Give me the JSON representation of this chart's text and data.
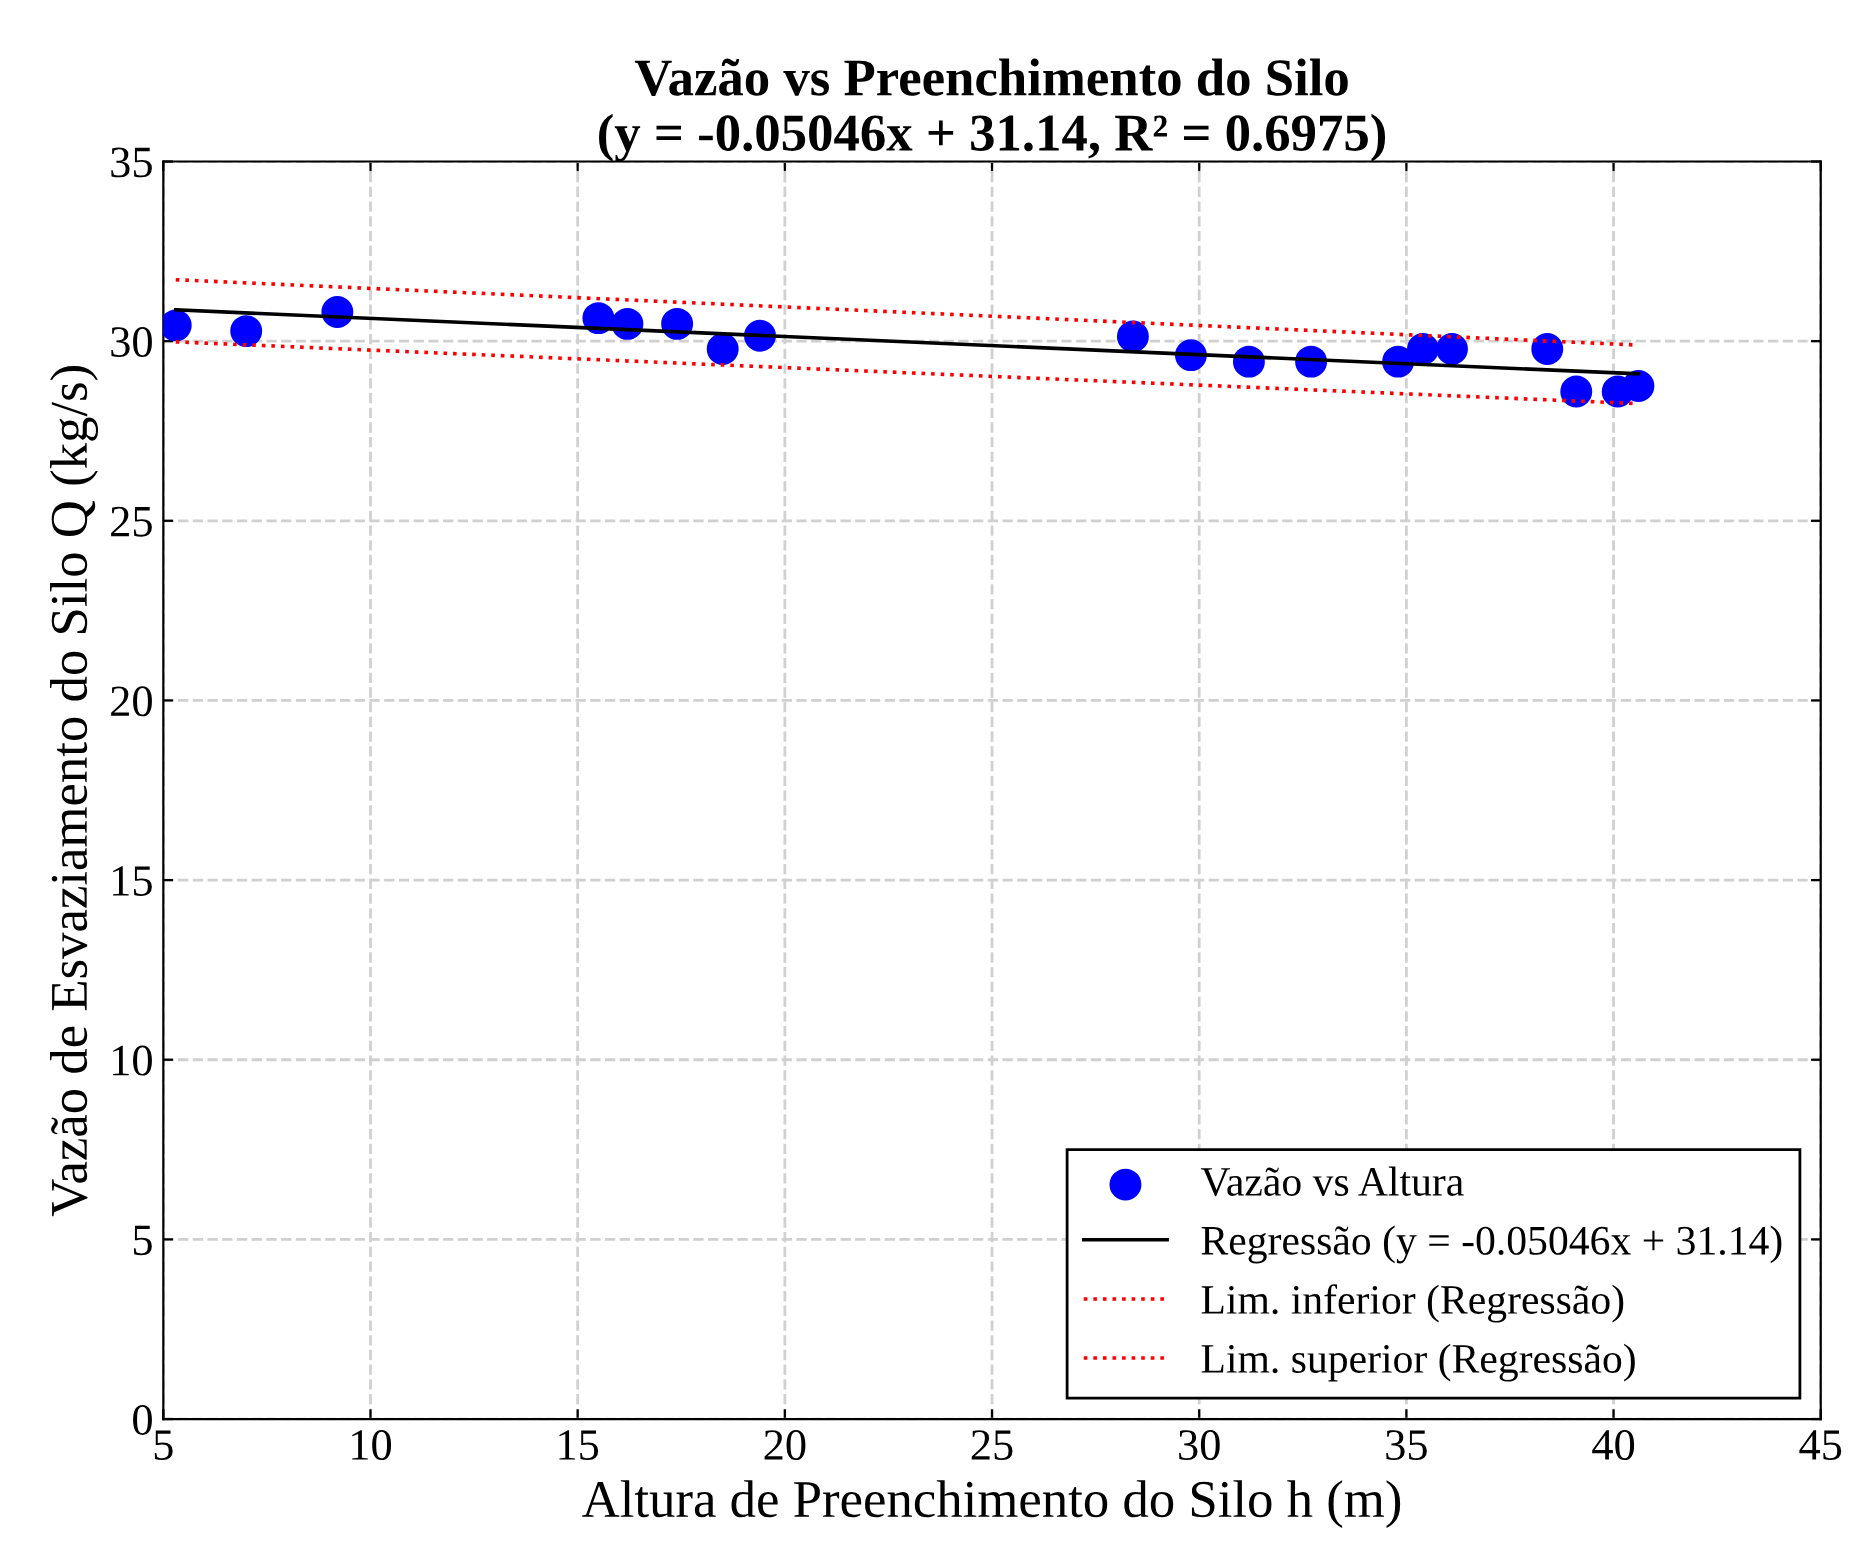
{
  "chart_data": {
    "type": "scatter",
    "title": "Vazão vs Preenchimento do Silo\n(y = -0.05046x + 31.14, R² = 0.6975)",
    "xlabel": "Altura de Preenchimento do Silo h (m)",
    "ylabel": "Vazão de Esvaziamento do Silo Q (kg/s)",
    "xlim": [
      5,
      45
    ],
    "ylim": [
      0,
      35
    ],
    "xticks": [
      5,
      10,
      15,
      20,
      25,
      30,
      35,
      40,
      45
    ],
    "yticks": [
      0,
      5,
      10,
      15,
      20,
      25,
      30,
      35
    ],
    "grid": true,
    "legend": "bottom right",
    "series": [
      {
        "name": "Vazão vs Altura",
        "type": "scatter",
        "marker": "circle",
        "color": "#0000ff",
        "x": [
          5.3,
          7.0,
          9.2,
          15.5,
          16.2,
          17.4,
          18.5,
          19.4,
          28.4,
          29.8,
          31.2,
          32.7,
          34.8,
          35.4,
          36.1,
          38.4,
          39.1,
          40.1,
          40.6
        ],
        "values": [
          30.44,
          30.28,
          30.81,
          30.64,
          30.48,
          30.48,
          29.78,
          30.15,
          30.13,
          29.61,
          29.43,
          29.43,
          29.43,
          29.78,
          29.78,
          29.78,
          28.6,
          28.6,
          28.75
        ]
      },
      {
        "name": "Regressão (y = -0.05046x + 31.14)",
        "type": "line",
        "line_style": "solid",
        "color": "#000000",
        "x": [
          5.3,
          40.6
        ],
        "values": [
          30.87,
          29.09
        ]
      },
      {
        "name": "Lim. inferior (Regressão)",
        "type": "line",
        "line_style": "dotted",
        "color": "#ff0000",
        "x": [
          5.3,
          40.6
        ],
        "values": [
          29.98,
          28.26
        ]
      },
      {
        "name": "Lim. superior (Regressão)",
        "type": "line",
        "line_style": "dotted",
        "color": "#ff0000",
        "x": [
          5.3,
          40.6
        ],
        "values": [
          31.71,
          29.89
        ]
      }
    ]
  }
}
